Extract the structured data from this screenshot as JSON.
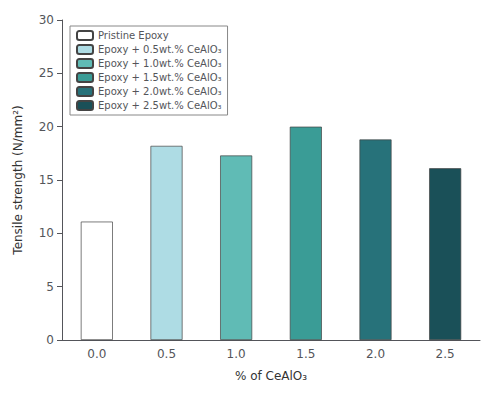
{
  "chart_data": {
    "type": "bar",
    "categories": [
      "0.0",
      "0.5",
      "1.0",
      "1.5",
      "2.0",
      "2.5"
    ],
    "series": [
      {
        "name": "Pristine Epoxy",
        "color": "#ffffff",
        "values": [
          11.1,
          null,
          null,
          null,
          null,
          null
        ]
      },
      {
        "name": "Epoxy + 0.5wt.% CeAlO₃",
        "color": "#aedce4",
        "values": [
          null,
          18.2,
          null,
          null,
          null,
          null
        ]
      },
      {
        "name": "Epoxy + 1.0wt.% CeAlO₃",
        "color": "#60bbb5",
        "values": [
          null,
          null,
          17.3,
          null,
          null,
          null
        ]
      },
      {
        "name": "Epoxy + 1.5wt.% CeAlO₃",
        "color": "#3a9c96",
        "values": [
          null,
          null,
          null,
          20.0,
          null,
          null
        ]
      },
      {
        "name": "Epoxy + 2.0wt.% CeAlO₃",
        "color": "#27727a",
        "values": [
          null,
          null,
          null,
          null,
          18.8,
          null
        ]
      },
      {
        "name": "Epoxy + 2.5wt.% CeAlO₃",
        "color": "#1a5058",
        "values": [
          null,
          null,
          null,
          null,
          null,
          16.1
        ]
      }
    ],
    "xlabel": "% of CeAlO₃",
    "ylabel": "Tensile strength (N/mm²)",
    "ylim": [
      0,
      30
    ],
    "yticks": [
      0,
      5,
      10,
      15,
      20,
      25,
      30
    ],
    "grid": false,
    "legend": "upper left"
  }
}
